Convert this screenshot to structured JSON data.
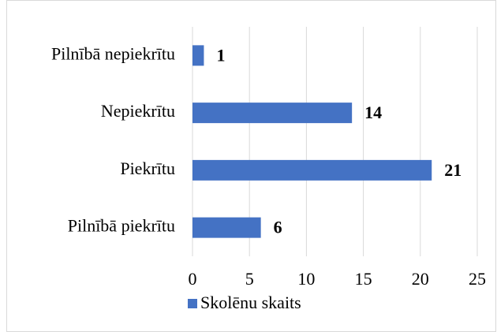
{
  "chart_data": {
    "type": "bar",
    "orientation": "horizontal",
    "categories": [
      "Pilnībā nepiekrītu",
      "Nepiekrītu",
      "Piekrītu",
      "Pilnībā piekrītu"
    ],
    "series": [
      {
        "name": "Skolēnu skaits",
        "color": "#4472c4",
        "values": [
          1,
          14,
          21,
          6
        ]
      }
    ],
    "xlim": [
      0,
      25
    ],
    "xticks": [
      0,
      5,
      10,
      15,
      20,
      25
    ],
    "grid": true,
    "legend": "bottom"
  }
}
